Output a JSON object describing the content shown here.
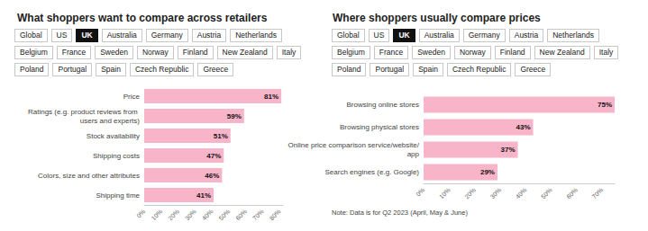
{
  "chart_data": [
    {
      "type": "bar",
      "title": "What shoppers want to compare across retailers",
      "tabs": [
        [
          "Global",
          "US",
          "UK",
          "Australia",
          "Germany",
          "Austria",
          "Netherlands"
        ],
        [
          "Belgium",
          "France",
          "Sweden",
          "Norway",
          "Finland",
          "New Zealand",
          "Italy"
        ],
        [
          "Poland",
          "Portugal",
          "Spain",
          "Czech Republic",
          "Greece"
        ]
      ],
      "selected_tab": "UK",
      "orientation": "horizontal",
      "categories": [
        "Price",
        "Ratings (e.g. product reviews from users and experts)",
        "Stock availability",
        "Shipping costs",
        "Colors, size and other attributes",
        "Shipping time"
      ],
      "values": [
        81,
        59,
        51,
        47,
        46,
        41
      ],
      "value_labels": [
        "81%",
        "59%",
        "51%",
        "47%",
        "46%",
        "41%"
      ],
      "data_labels": true,
      "color": "#f8b4c8",
      "xlim": [
        0,
        82
      ],
      "xticks": [
        {
          "value": 0,
          "label": "0%"
        },
        {
          "value": 10,
          "label": "10%"
        },
        {
          "value": 20,
          "label": "20%"
        },
        {
          "value": 30,
          "label": "30%"
        },
        {
          "value": 40,
          "label": "40%"
        },
        {
          "value": 50,
          "label": "50%"
        },
        {
          "value": 60,
          "label": "60%"
        },
        {
          "value": 70,
          "label": "70%"
        },
        {
          "value": 80,
          "label": "80%"
        }
      ],
      "grid": false
    },
    {
      "type": "bar",
      "title": "Where shoppers usually compare prices",
      "tabs": [
        [
          "Global",
          "US",
          "UK",
          "Australia",
          "Germany",
          "Austria",
          "Netherlands"
        ],
        [
          "Belgium",
          "France",
          "Sweden",
          "Norway",
          "Finland",
          "New Zealand",
          "Italy"
        ],
        [
          "Poland",
          "Portugal",
          "Spain",
          "Czech Republic",
          "Greece"
        ]
      ],
      "selected_tab": "UK",
      "orientation": "horizontal",
      "categories": [
        "Browsing online stores",
        "Browsing physical stores",
        "Online price comparison service/website/app",
        "Search engines (e.g. Google)"
      ],
      "values": [
        75,
        43,
        37,
        29
      ],
      "value_labels": [
        "75%",
        "43%",
        "37%",
        "29%"
      ],
      "data_labels": true,
      "color": "#f8b4c8",
      "xlim": [
        0,
        75
      ],
      "xticks": [
        {
          "value": 0,
          "label": "0%"
        },
        {
          "value": 10,
          "label": "10%"
        },
        {
          "value": 20,
          "label": "20%"
        },
        {
          "value": 30,
          "label": "30%"
        },
        {
          "value": 40,
          "label": "40%"
        },
        {
          "value": 50,
          "label": "50%"
        },
        {
          "value": 60,
          "label": "60%"
        },
        {
          "value": 70,
          "label": "70%"
        }
      ],
      "annotations": [
        "Note: Data is for Q2 2023 (April, May & June)"
      ],
      "grid": false
    }
  ]
}
